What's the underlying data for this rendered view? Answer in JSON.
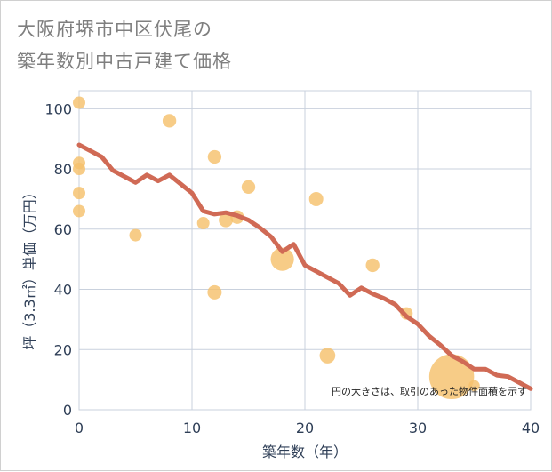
{
  "title": {
    "line1": "大阪府堺市中区伏尾の",
    "line2": "築年数別中古戸建て価格"
  },
  "chart_data": {
    "type": "scatter+line",
    "xlabel": "築年数（年）",
    "ylabel": "坪（3.3㎡）単価（万円）",
    "xlim": [
      0,
      40
    ],
    "ylim": [
      0,
      106
    ],
    "xticks": [
      "0",
      "10",
      "20",
      "30",
      "40"
    ],
    "xtick_values": [
      0,
      10,
      20,
      30,
      40
    ],
    "yticks": [
      "0",
      "20",
      "40",
      "60",
      "80",
      "100"
    ],
    "ytick_values": [
      0,
      20,
      40,
      60,
      80,
      100
    ],
    "grid": true,
    "note": "円の大きさは、取引のあった物件面積を示す",
    "colors": {
      "bubble": "#f5c16c",
      "line": "#d06a55",
      "grid": "#c9d1dd"
    },
    "bubbles": [
      {
        "x": 0,
        "y": 102,
        "size": 1
      },
      {
        "x": 0,
        "y": 82,
        "size": 1
      },
      {
        "x": 0,
        "y": 80,
        "size": 1
      },
      {
        "x": 0,
        "y": 72,
        "size": 1
      },
      {
        "x": 0,
        "y": 66,
        "size": 1
      },
      {
        "x": 5,
        "y": 58,
        "size": 1
      },
      {
        "x": 8,
        "y": 96,
        "size": 1.2
      },
      {
        "x": 11,
        "y": 62,
        "size": 1
      },
      {
        "x": 12,
        "y": 84,
        "size": 1.2
      },
      {
        "x": 12,
        "y": 39,
        "size": 1.3
      },
      {
        "x": 13,
        "y": 63,
        "size": 1.3
      },
      {
        "x": 14,
        "y": 64,
        "size": 1.2
      },
      {
        "x": 15,
        "y": 74,
        "size": 1.2
      },
      {
        "x": 18,
        "y": 50,
        "size": 3.5
      },
      {
        "x": 21,
        "y": 70,
        "size": 1.3
      },
      {
        "x": 22,
        "y": 18,
        "size": 1.6
      },
      {
        "x": 26,
        "y": 48,
        "size": 1.2
      },
      {
        "x": 29,
        "y": 32,
        "size": 1
      },
      {
        "x": 33,
        "y": 11,
        "size": 13
      },
      {
        "x": 35,
        "y": 8,
        "size": 0.8
      }
    ],
    "line": {
      "x": [
        0,
        1,
        2,
        3,
        4,
        5,
        6,
        7,
        8,
        9,
        10,
        11,
        12,
        13,
        14,
        15,
        16,
        17,
        18,
        19,
        20,
        21,
        22,
        23,
        24,
        25,
        26,
        27,
        28,
        29,
        30,
        31,
        32,
        33,
        34,
        35,
        36,
        37,
        38,
        39,
        40
      ],
      "y": [
        88,
        86,
        84,
        79.5,
        77.5,
        75.5,
        78,
        76,
        78,
        75,
        72,
        66,
        65,
        65.5,
        64.5,
        63,
        60.5,
        57.5,
        52.5,
        55,
        48,
        46,
        44,
        42,
        38,
        40.5,
        38.5,
        37,
        35,
        31,
        28.5,
        24.5,
        21.5,
        18,
        16,
        13.5,
        13.5,
        11.5,
        11,
        9,
        7
      ]
    }
  }
}
